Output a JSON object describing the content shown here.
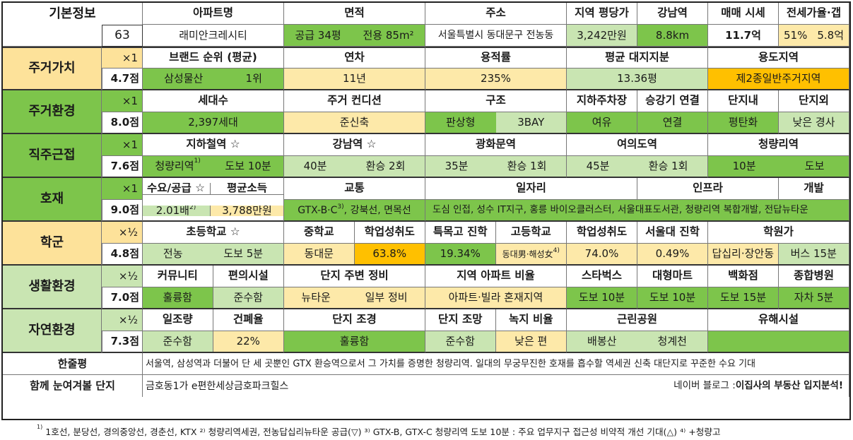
{
  "basic": {
    "label": "기본정보",
    "num": "63",
    "h": [
      "아파트명",
      "면적",
      "주소",
      "지역 평당가",
      "강남역",
      "매매 시세",
      "전세가율·갭"
    ],
    "name": "래미안크레시티",
    "area_a": "공급 34평",
    "area_b": "전용 85m²",
    "addr": "서울특별시 동대문구 전농동",
    "price": "3,242만원",
    "gangnam": "8.8km",
    "sale": "11.7억",
    "jeonse_a": "51%",
    "jeonse_b": "5.8억"
  },
  "r1": {
    "cat": "주거가치",
    "mul": "×1",
    "score": "4.7점",
    "h": [
      "브랜드 순위 (평균)",
      "연차",
      "용적률",
      "평균 대지지분",
      "용도지역"
    ],
    "v": [
      "삼성물산",
      "1위",
      "11년",
      "235%",
      "13.36평",
      "제2종일반주거지역"
    ]
  },
  "r2": {
    "cat": "주거환경",
    "mul": "×1",
    "score": "8.0점",
    "h": [
      "세대수",
      "주거 컨디션",
      "구조",
      "지하주차장",
      "승강기 연결",
      "단지내",
      "단지외"
    ],
    "v": [
      "2,397세대",
      "준신축",
      "판상형",
      "3BAY",
      "여유",
      "연결",
      "평탄화",
      "낮은 경사"
    ]
  },
  "r3": {
    "cat": "직주근접",
    "mul": "×1",
    "score": "7.6점",
    "h": [
      "지하철역 ☆",
      "강남역 ☆",
      "광화문역",
      "여의도역",
      "청량리역"
    ],
    "v": [
      "청량리역",
      "도보 10분",
      "40분",
      "환승 2회",
      "35분",
      "환승 1회",
      "45분",
      "환승 1회",
      "10분",
      "도보"
    ]
  },
  "r4": {
    "cat": "호재",
    "mul": "×1",
    "score": "9.0점",
    "h": [
      "수요/공급 ☆",
      "평균소득",
      "교통",
      "일자리",
      "인프라",
      "개발"
    ],
    "v": [
      "2.01배",
      "3,788만원",
      "GTX-B·C",
      "도심 인접, 성수 IT지구, 홍릉 바이오클러스터, 서울대표도서관, 청량리역 복합개발, 전답뉴타운"
    ],
    "traffic_tail": ", 강북선, 면목선"
  },
  "r5": {
    "cat": "학군",
    "mul": "×½",
    "score": "4.8점",
    "h": [
      "초등학교 ☆",
      "중학교",
      "학업성취도",
      "특목고 진학",
      "고등학교",
      "학업성취도",
      "서울대 진학",
      "학원가"
    ],
    "v": [
      "전농",
      "도보 5분",
      "동대문",
      "63.8%",
      "19.34%",
      "동대男·해성女",
      "74.0%",
      "0.49%",
      "답십리·장안동",
      "버스 15분"
    ]
  },
  "r6": {
    "cat": "생활환경",
    "mul": "×½",
    "score": "7.0점",
    "h": [
      "커뮤니티",
      "편의시설",
      "단지 주변 정비",
      "지역 아파트 비율",
      "스타벅스",
      "대형마트",
      "백화점",
      "종합병원"
    ],
    "v": [
      "훌륭함",
      "준수함",
      "뉴타운",
      "일부 정비",
      "아파트·빌라 혼재지역",
      "도보 10분",
      "도보 10분",
      "도보 15분",
      "자차 5분"
    ]
  },
  "r7": {
    "cat": "자연환경",
    "mul": "×½",
    "score": "7.3점",
    "h": [
      "일조량",
      "건폐율",
      "단지 조경",
      "단지 조망",
      "녹지 비율",
      "근린공원",
      "유해시설"
    ],
    "v": [
      "준수함",
      "22%",
      "훌륭함",
      "준수함",
      "낮은 편",
      "배봉산",
      "청계천",
      ""
    ]
  },
  "summary": {
    "label": "한줄평",
    "text": "서울역, 삼성역과 더불어 단 세 곳뿐인 GTX 환승역으로서 그 가치를 증명한 청량리역. 일대의 무궁무진한 호재를 흡수할 역세권 신축 대단지로 꾸준한 수요 기대"
  },
  "together": {
    "label": "함께 눈여겨볼 단지",
    "text": "금호동1가 e편한세상금호파크힐스",
    "blog_prefix": "네이버 블로그 : ",
    "blog_name": "이집사의 부동산 입지분석!"
  },
  "footnote": "1호선, 분당선, 경의중앙선, 경춘선, KTX ²⁾ 청량리역세권, 전농답십리뉴타운 공급(▽) ³⁾ GTX-B, GTX-C 청량리역 도보 10분 : 주요 업무지구 접근성 비약적 개선 기대(△) ⁴⁾ +청량고",
  "colors": {
    "green": "#7dc54b",
    "light_green": "#c9e5b2",
    "yellow": "#fde9a9",
    "orange": "#ffc000",
    "cat_yellow": "#fde29a"
  }
}
